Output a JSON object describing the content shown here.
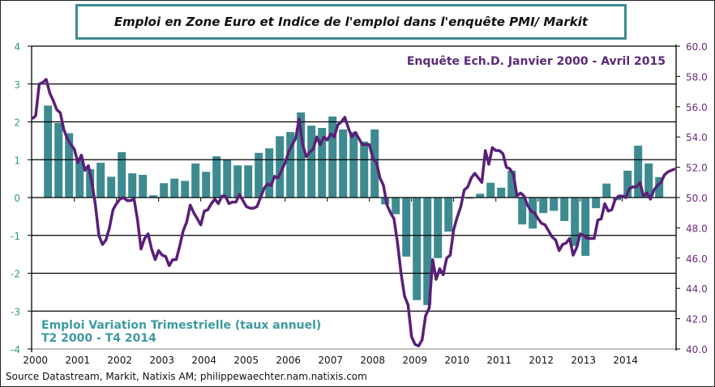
{
  "chart_data": {
    "type": "bar+line",
    "title": "Emploi en Zone Euro et Indice de l'emploi dans l'enquête PMI/ Markit",
    "source": "Source Datastream, Markit, Natixis AM; philippewaechter.nam.natixis.com",
    "x_ticks": [
      "2000",
      "2001",
      "2002",
      "2003",
      "2004",
      "2005",
      "2006",
      "2007",
      "2008",
      "2009",
      "2010",
      "2011",
      "2012",
      "2013",
      "2014"
    ],
    "left_axis": {
      "range": [
        -4,
        4
      ],
      "ticks": [
        "4",
        "3",
        "2",
        "1",
        "0",
        "-1",
        "-2",
        "-3",
        "-4"
      ],
      "color": "#2e9a80"
    },
    "right_axis": {
      "range": [
        40,
        60
      ],
      "ticks": [
        "60.0",
        "58.0",
        "56.0",
        "54.0",
        "52.0",
        "50.0",
        "48.0",
        "46.0",
        "44.0",
        "42.0",
        "40.0"
      ],
      "color": "#6b2a82"
    },
    "grid": true,
    "bar_series": {
      "label_line1": "Emploi Variation Trimestrielle  (taux annuel)",
      "label_line2": "T2 2000 - T4 2014",
      "axis": "left",
      "color": "#3d8b91",
      "start": "2000-Q2",
      "values": [
        2.43,
        1.97,
        1.7,
        1.05,
        0.75,
        0.92,
        0.55,
        1.2,
        0.64,
        0.6,
        0.06,
        0.38,
        0.5,
        0.44,
        0.9,
        0.68,
        1.09,
        1.0,
        0.85,
        0.85,
        1.18,
        1.3,
        1.62,
        1.73,
        2.25,
        1.9,
        1.84,
        2.14,
        1.8,
        1.73,
        1.48,
        1.8,
        -0.18,
        -0.44,
        -1.56,
        -2.71,
        -2.84,
        -1.6,
        -0.9,
        0.02,
        -0.03,
        0.1,
        0.39,
        0.26,
        0.71,
        -0.71,
        -0.82,
        -0.41,
        -0.35,
        -0.62,
        -1.28,
        -1.54,
        -0.28,
        0.37,
        -0.07,
        0.71,
        1.37,
        0.9,
        0.54
      ]
    },
    "line_series": {
      "label": "Enquête Ech.D. Janvier 2000 - Avril 2015",
      "axis": "right",
      "color": "#5a1f78",
      "start": "2000-01",
      "frequency": "monthly",
      "values": [
        55.2,
        55.4,
        57.5,
        57.6,
        57.8,
        56.9,
        56.4,
        55.8,
        55.6,
        54.5,
        53.9,
        53.5,
        53.2,
        52.3,
        52.8,
        51.8,
        52.1,
        51.0,
        49.5,
        47.5,
        46.9,
        47.2,
        48.0,
        49.2,
        49.6,
        49.9,
        50.0,
        49.8,
        49.8,
        49.9,
        48.5,
        46.6,
        47.3,
        47.6,
        46.6,
        45.9,
        46.5,
        46.2,
        46.1,
        45.5,
        45.9,
        45.9,
        46.8,
        47.8,
        48.4,
        49.5,
        49.0,
        48.6,
        48.2,
        49.1,
        49.2,
        49.6,
        49.9,
        49.6,
        50.1,
        50.1,
        49.6,
        49.7,
        49.7,
        50.2,
        49.8,
        49.4,
        49.3,
        49.3,
        49.4,
        50.0,
        50.6,
        50.9,
        50.8,
        51.4,
        51.3,
        51.8,
        52.3,
        53.0,
        53.5,
        53.9,
        55.2,
        53.5,
        52.7,
        53.0,
        53.2,
        54.0,
        53.5,
        54.0,
        53.8,
        54.2,
        54.0,
        54.8,
        55.0,
        55.3,
        54.6,
        54.0,
        54.3,
        53.9,
        53.5,
        53.5,
        53.5,
        52.6,
        52.3,
        51.3,
        50.8,
        49.5,
        49.0,
        48.6,
        47.0,
        45.0,
        43.5,
        42.9,
        40.8,
        40.3,
        40.2,
        40.6,
        42.2,
        42.7,
        45.9,
        44.6,
        45.3,
        44.9,
        46.0,
        46.2,
        47.9,
        48.7,
        49.4,
        50.5,
        50.7,
        51.3,
        51.6,
        51.3,
        51.0,
        53.1,
        52.2,
        53.3,
        53.1,
        53.1,
        52.9,
        52.0,
        51.9,
        51.5,
        50.1,
        50.3,
        50.1,
        49.5,
        49.1,
        49.0,
        48.6,
        48.3,
        48.2,
        47.8,
        47.4,
        47.2,
        46.5,
        46.9,
        47.0,
        47.3,
        46.2,
        46.7,
        47.6,
        47.5,
        47.3,
        47.3,
        47.3,
        48.5,
        48.6,
        49.6,
        49.1,
        49.2,
        49.9,
        50.1,
        50.1,
        50.0,
        50.6,
        50.7,
        50.7,
        51.0,
        50.1,
        50.3,
        49.9,
        50.5,
        50.8,
        51.0,
        51.5,
        51.7,
        51.8,
        51.9
      ]
    },
    "colors": {
      "grid": "#000000",
      "bar_label": "#3d9aa0",
      "line_label": "#5a2a78"
    }
  }
}
